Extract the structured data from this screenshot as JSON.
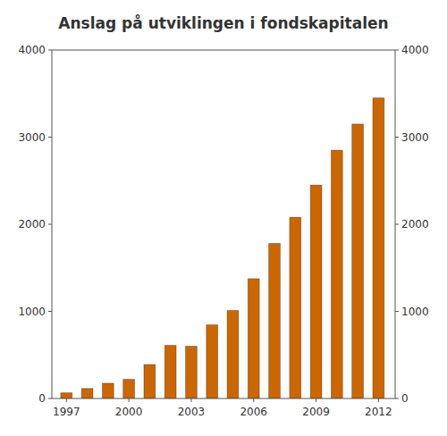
{
  "chart_data": {
    "type": "bar",
    "title": "Anslag på utviklingen i fondskapitalen",
    "x": [
      1997,
      1998,
      1999,
      2000,
      2001,
      2002,
      2003,
      2004,
      2005,
      2006,
      2007,
      2008,
      2009,
      2010,
      2011,
      2012
    ],
    "values": [
      65,
      115,
      175,
      220,
      390,
      610,
      600,
      845,
      1010,
      1375,
      1780,
      2080,
      2450,
      2850,
      3150,
      3450
    ],
    "color": "#CC6600",
    "xlim": [
      1996.3,
      2012.8
    ],
    "xticks": [
      1997,
      2000,
      2003,
      2006,
      2009,
      2012
    ],
    "ylim": [
      0,
      4000
    ],
    "yticks": [
      0,
      1000,
      2000,
      3000,
      4000
    ],
    "y2lim": [
      0,
      4000
    ],
    "y2ticks": [
      0,
      1000,
      2000,
      3000,
      4000
    ],
    "grid": false
  }
}
